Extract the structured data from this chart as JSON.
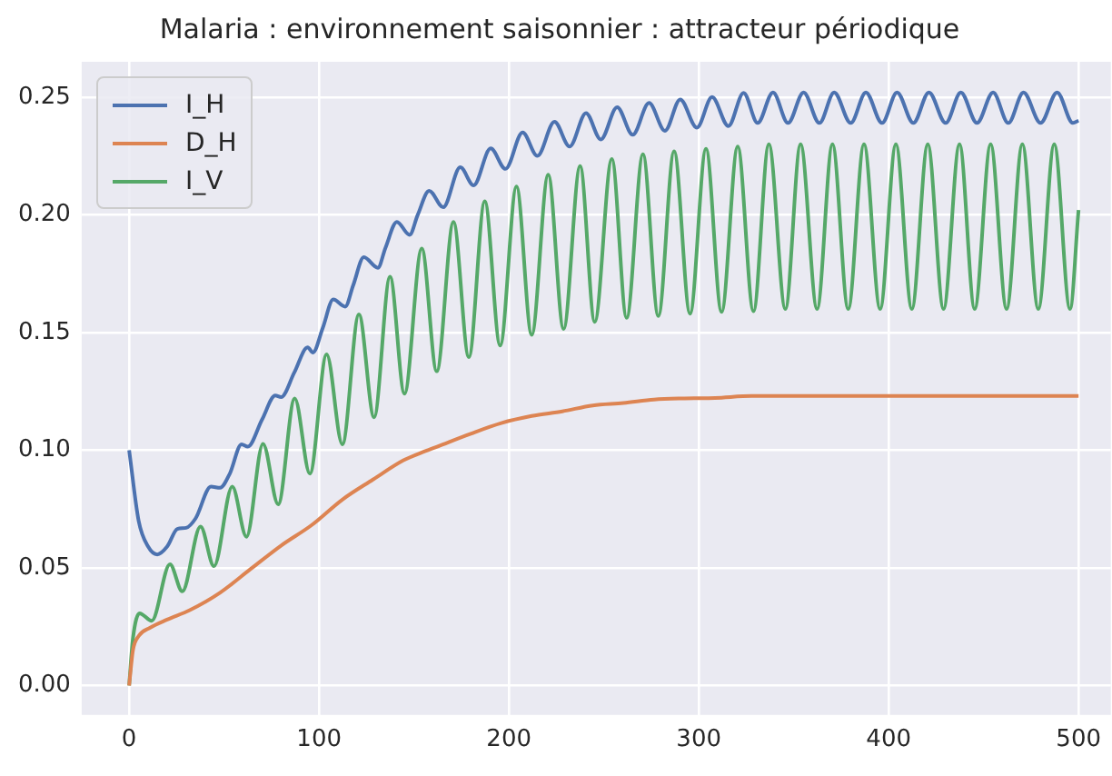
{
  "chart_data": {
    "type": "line",
    "title": "Malaria : environnement saisonnier : attracteur périodique",
    "xlim": [
      -25,
      517
    ],
    "ylim": [
      -0.0125,
      0.265
    ],
    "xticks": [
      0,
      100,
      200,
      300,
      400,
      500
    ],
    "yticks": [
      {
        "value": 0,
        "label": "0.00"
      },
      {
        "value": 0.05,
        "label": "0.05"
      },
      {
        "value": 0.1,
        "label": "0.10"
      },
      {
        "value": 0.15,
        "label": "0.15"
      },
      {
        "value": 0.2,
        "label": "0.20"
      },
      {
        "value": 0.25,
        "label": "0.25"
      }
    ],
    "grid": true,
    "legend": "top left",
    "line_style": "solid",
    "series": [
      {
        "name": "I_H",
        "color": "#4c72b0",
        "x": [
          0,
          5,
          10,
          14.8,
          20,
          25.4,
          30,
          35,
          43.1,
          47.9,
          53,
          59.2,
          62.5,
          70,
          77,
          80,
          87,
          94,
          96.8,
          102,
          107.5,
          113.8,
          118,
          123.6,
          131,
          135,
          141,
          147.7,
          152,
          158,
          165.4,
          174.4,
          181.4,
          190.4,
          198.2,
          207.2,
          215,
          224,
          232,
          240.6,
          248.4,
          257,
          265.2,
          273.8,
          282.2,
          290.2,
          299,
          307,
          315.6,
          323.6,
          331,
          339.1,
          347,
          355.2,
          363.5,
          371.3,
          380,
          388,
          396.5,
          404.4,
          413,
          421.2,
          430,
          438,
          446.5,
          455,
          463,
          471,
          480,
          488.7,
          497,
          500
        ],
        "values": [
          0.1,
          0.07,
          0.059,
          0.0557,
          0.059,
          0.0665,
          0.067,
          0.071,
          0.0845,
          0.084,
          0.09,
          0.1025,
          0.1015,
          0.113,
          0.1232,
          0.1225,
          0.133,
          0.1437,
          0.1415,
          0.152,
          0.164,
          0.161,
          0.17,
          0.182,
          0.1775,
          0.186,
          0.197,
          0.1915,
          0.2,
          0.2102,
          0.2032,
          0.2202,
          0.2125,
          0.2282,
          0.2195,
          0.235,
          0.225,
          0.2395,
          0.229,
          0.2432,
          0.232,
          0.2457,
          0.234,
          0.2475,
          0.2357,
          0.249,
          0.237,
          0.25,
          0.2377,
          0.2518,
          0.239,
          0.252,
          0.239,
          0.252,
          0.239,
          0.252,
          0.239,
          0.252,
          0.239,
          0.252,
          0.239,
          0.252,
          0.239,
          0.252,
          0.239,
          0.252,
          0.239,
          0.252,
          0.239,
          0.252,
          0.239,
          0.24
        ]
      },
      {
        "name": "D_H",
        "color": "#dd8452",
        "x": [
          0,
          2,
          5,
          10.9,
          20,
          31.9,
          48,
          64,
          80.1,
          96.2,
          112.3,
          128.4,
          144.5,
          155.7,
          162.2,
          179.9,
          196,
          212,
          228.1,
          244.2,
          260.3,
          276.4,
          292.5,
          308.6,
          327.9,
          350,
          400,
          450,
          500
        ],
        "values": [
          0,
          0.015,
          0.021,
          0.0245,
          0.028,
          0.032,
          0.0395,
          0.0495,
          0.0595,
          0.0682,
          0.079,
          0.0875,
          0.0957,
          0.0995,
          0.1015,
          0.107,
          0.1115,
          0.1145,
          0.1165,
          0.119,
          0.12,
          0.1215,
          0.122,
          0.1222,
          0.123,
          0.123,
          0.123,
          0.123,
          0.123
        ]
      },
      {
        "name": "I_V",
        "color": "#55a868",
        "x": [
          0,
          2,
          5.5,
          11.9,
          21.5,
          28,
          37.6,
          44.7,
          54.3,
          61.8,
          70.5,
          78.5,
          87.2,
          95.2,
          104,
          112.3,
          121,
          129,
          137.4,
          145,
          154.1,
          162,
          170.8,
          178.9,
          187.3,
          195.4,
          204,
          212,
          220.7,
          228.8,
          237.5,
          245.2,
          254.2,
          262,
          270.6,
          278.7,
          287,
          295.4,
          303.8,
          312,
          320.5,
          328.8,
          336.9,
          345.6,
          353.6,
          362.3,
          370.4,
          378.7,
          387,
          395.5,
          403.8,
          412.2,
          420.6,
          428.9,
          437.3,
          445.3,
          453.7,
          462.1,
          470.4,
          478.8,
          487.2,
          495.5,
          500
        ],
        "values": [
          0,
          0.02,
          0.0307,
          0.0275,
          0.0515,
          0.04,
          0.0675,
          0.0507,
          0.0845,
          0.0632,
          0.1027,
          0.077,
          0.122,
          0.09,
          0.1407,
          0.1025,
          0.1577,
          0.114,
          0.1737,
          0.124,
          0.1857,
          0.1335,
          0.197,
          0.1395,
          0.2057,
          0.1445,
          0.212,
          0.149,
          0.217,
          0.1515,
          0.2207,
          0.1545,
          0.2237,
          0.1562,
          0.2257,
          0.157,
          0.227,
          0.158,
          0.228,
          0.1587,
          0.229,
          0.159,
          0.23,
          0.16,
          0.23,
          0.16,
          0.23,
          0.16,
          0.23,
          0.16,
          0.23,
          0.16,
          0.23,
          0.16,
          0.23,
          0.16,
          0.23,
          0.16,
          0.23,
          0.16,
          0.23,
          0.16,
          0.202
        ]
      }
    ]
  }
}
